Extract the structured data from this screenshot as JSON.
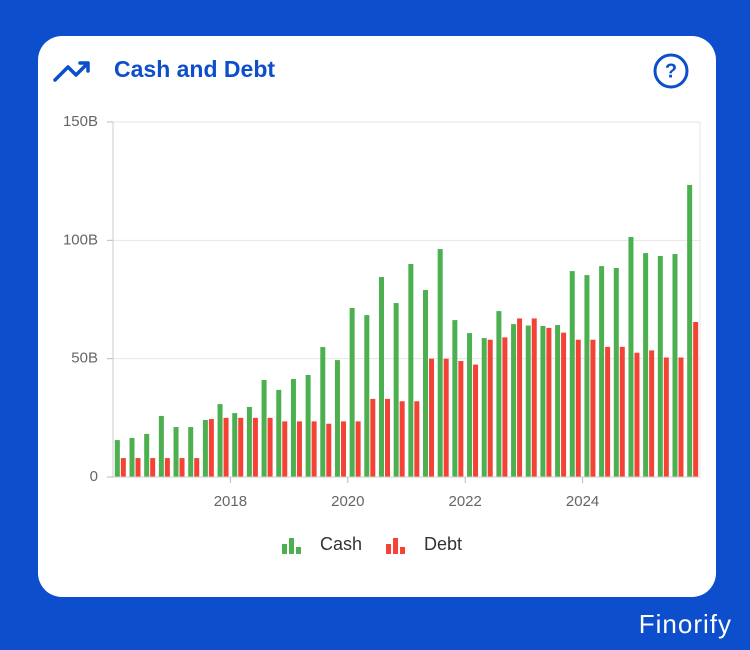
{
  "brand": "Finorify",
  "chart_data": {
    "type": "bar",
    "title": "Cash and Debt",
    "x": [
      2016.125,
      2016.375,
      2016.625,
      2016.875,
      2017.125,
      2017.375,
      2017.625,
      2017.875,
      2018.125,
      2018.375,
      2018.625,
      2018.875,
      2019.125,
      2019.375,
      2019.625,
      2019.875,
      2020.125,
      2020.375,
      2020.625,
      2020.875,
      2021.125,
      2021.375,
      2021.625,
      2021.875,
      2022.125,
      2022.375,
      2022.625,
      2022.875,
      2023.125,
      2023.375,
      2023.625,
      2023.875,
      2024.125,
      2024.375,
      2024.625,
      2024.875,
      2025.125,
      2025.375,
      2025.625,
      2025.875
    ],
    "series": [
      {
        "name": "Cash",
        "color": "#4caf50",
        "values": [
          15.6,
          16.5,
          18.2,
          25.8,
          21.1,
          21.1,
          24.1,
          30.8,
          27.0,
          29.6,
          41.0,
          36.8,
          41.4,
          43.1,
          54.9,
          49.4,
          71.4,
          68.4,
          84.5,
          73.5,
          90.0,
          79.0,
          96.3,
          66.3,
          60.8,
          58.7,
          70.1,
          64.6,
          64.0,
          63.8,
          64.2,
          87.0,
          85.3,
          89.1,
          88.3,
          101.4,
          94.6,
          93.4,
          94.2,
          123.4
        ]
      },
      {
        "name": "Debt",
        "color": "#f44336",
        "values": [
          8,
          8,
          8,
          8,
          8,
          8,
          24.5,
          25,
          25,
          25,
          25,
          23.5,
          23.5,
          23.5,
          22.5,
          23.5,
          23.5,
          33,
          33,
          32,
          32,
          50,
          50,
          49,
          47.5,
          58,
          59,
          67,
          67,
          63,
          61,
          58,
          58,
          55,
          55,
          52.5,
          53.5,
          50.5,
          50.5,
          65.5
        ]
      }
    ],
    "xlim": [
      2016,
      2026
    ],
    "xticks": [
      2018,
      2020,
      2022,
      2024
    ],
    "ylim": [
      0,
      150
    ],
    "yticks": [
      0,
      {
        "value": 50,
        "label": "50B"
      },
      {
        "value": 100,
        "label": "100B"
      },
      {
        "value": 150,
        "label": "150B"
      }
    ],
    "grid": true,
    "legend": "bottom"
  }
}
